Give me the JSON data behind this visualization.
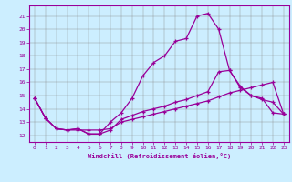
{
  "xlabel": "Windchill (Refroidissement éolien,°C)",
  "ylabel": "",
  "bg_color": "#cceeff",
  "grid_color": "#888888",
  "line_color": "#990099",
  "xlim": [
    -0.5,
    23.5
  ],
  "ylim": [
    11.5,
    21.8
  ],
  "yticks": [
    12,
    13,
    14,
    15,
    16,
    17,
    18,
    19,
    20,
    21
  ],
  "xticks": [
    0,
    1,
    2,
    3,
    4,
    5,
    6,
    7,
    8,
    9,
    10,
    11,
    12,
    13,
    14,
    15,
    16,
    17,
    18,
    19,
    20,
    21,
    22,
    23
  ],
  "line1_x": [
    0,
    1,
    2,
    3,
    4,
    5,
    6,
    7,
    8,
    9,
    10,
    11,
    12,
    13,
    14,
    15,
    16,
    17,
    18,
    19,
    20,
    21,
    22,
    23
  ],
  "line1_y": [
    14.8,
    13.3,
    12.5,
    12.4,
    12.5,
    12.1,
    12.1,
    13.0,
    13.7,
    14.8,
    16.5,
    17.5,
    18.0,
    19.1,
    19.3,
    21.0,
    21.2,
    20.0,
    16.9,
    15.6,
    15.0,
    14.7,
    14.5,
    13.6
  ],
  "line2_x": [
    0,
    1,
    2,
    3,
    4,
    5,
    6,
    7,
    8,
    9,
    10,
    11,
    12,
    13,
    14,
    15,
    16,
    17,
    18,
    19,
    20,
    21,
    22,
    23
  ],
  "line2_y": [
    14.8,
    13.3,
    12.5,
    12.4,
    12.5,
    12.1,
    12.1,
    12.4,
    13.2,
    13.5,
    13.8,
    14.0,
    14.2,
    14.5,
    14.7,
    15.0,
    15.3,
    16.8,
    16.9,
    15.7,
    15.0,
    14.8,
    13.7,
    13.6
  ],
  "line3_x": [
    0,
    1,
    2,
    3,
    4,
    5,
    6,
    7,
    8,
    9,
    10,
    11,
    12,
    13,
    14,
    15,
    16,
    17,
    18,
    19,
    20,
    21,
    22,
    23
  ],
  "line3_y": [
    14.8,
    13.3,
    12.5,
    12.4,
    12.4,
    12.4,
    12.4,
    12.5,
    13.0,
    13.2,
    13.4,
    13.6,
    13.8,
    14.0,
    14.2,
    14.4,
    14.6,
    14.9,
    15.2,
    15.4,
    15.6,
    15.8,
    16.0,
    13.6
  ]
}
